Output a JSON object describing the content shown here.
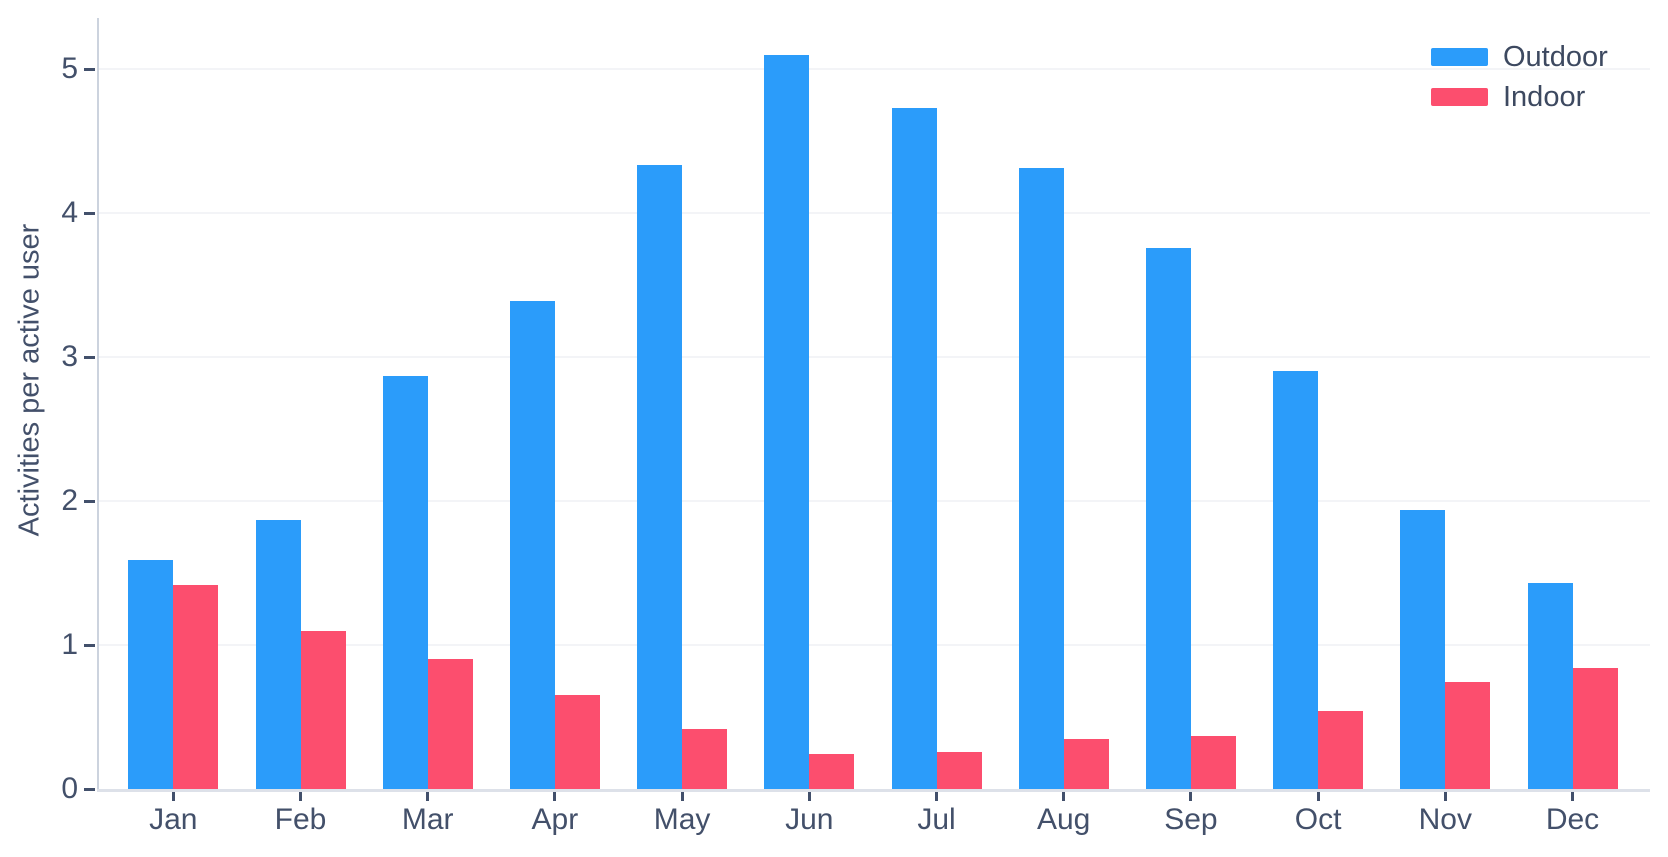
{
  "chart_data": {
    "type": "bar",
    "title": "",
    "xlabel": "",
    "ylabel": "Activities per active user",
    "categories": [
      "Jan",
      "Feb",
      "Mar",
      "Apr",
      "May",
      "Jun",
      "Jul",
      "Aug",
      "Sep",
      "Oct",
      "Nov",
      "Dec"
    ],
    "series": [
      {
        "name": "Outdoor",
        "color": "#2b9cfa",
        "values": [
          1.59,
          1.87,
          2.87,
          3.39,
          4.33,
          5.1,
          4.73,
          4.31,
          3.76,
          2.9,
          1.94,
          1.43
        ]
      },
      {
        "name": "Indoor",
        "color": "#fc4e6e",
        "values": [
          1.42,
          1.1,
          0.9,
          0.65,
          0.42,
          0.24,
          0.26,
          0.35,
          0.37,
          0.54,
          0.74,
          0.84
        ]
      }
    ],
    "ylim": [
      0,
      5.36
    ],
    "yticks": [
      0,
      1,
      2,
      3,
      4,
      5
    ],
    "grid": true,
    "legend_position": "top-right"
  }
}
